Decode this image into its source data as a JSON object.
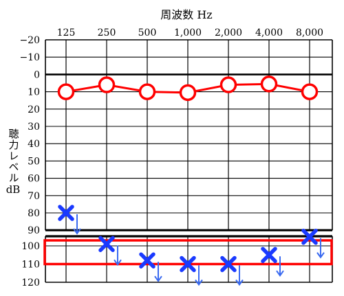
{
  "chart_data": {
    "type": "scatter",
    "title": "周波数 Hz",
    "ylabel_text": "聴力レベル",
    "ylabel_unit": "dB",
    "x_categories": [
      "125",
      "250",
      "500",
      "1,000",
      "2,000",
      "4,000",
      "8,000"
    ],
    "y_tick_labels": [
      "−20",
      "−10",
      "0",
      "10",
      "20",
      "30",
      "40",
      "50",
      "60",
      "70",
      "80",
      "90",
      "100",
      "110",
      "120"
    ],
    "y_ticks": [
      -20,
      -10,
      0,
      10,
      20,
      30,
      40,
      50,
      60,
      70,
      80,
      90,
      100,
      110,
      120
    ],
    "ylim": [
      -20,
      120
    ],
    "y_axis_inverted": true,
    "y_axis_break": [
      90,
      95
    ],
    "highlight_band": [
      95,
      110
    ],
    "series": [
      {
        "marker": "circle",
        "connected": true,
        "color": "#ff0000",
        "values": [
          10,
          6,
          10,
          10.5,
          6,
          5.5,
          10
        ]
      },
      {
        "marker": "cross",
        "no_response_arrow": true,
        "connected": false,
        "color": "#1a3aff",
        "values": [
          80,
          99,
          108,
          110,
          110,
          105,
          95
        ]
      }
    ],
    "colors": {
      "circle": "#ff0000",
      "cross": "#1a3aff",
      "arrow": "#3a6af0",
      "highlight": "#ff0000",
      "grid": "#000000"
    }
  }
}
